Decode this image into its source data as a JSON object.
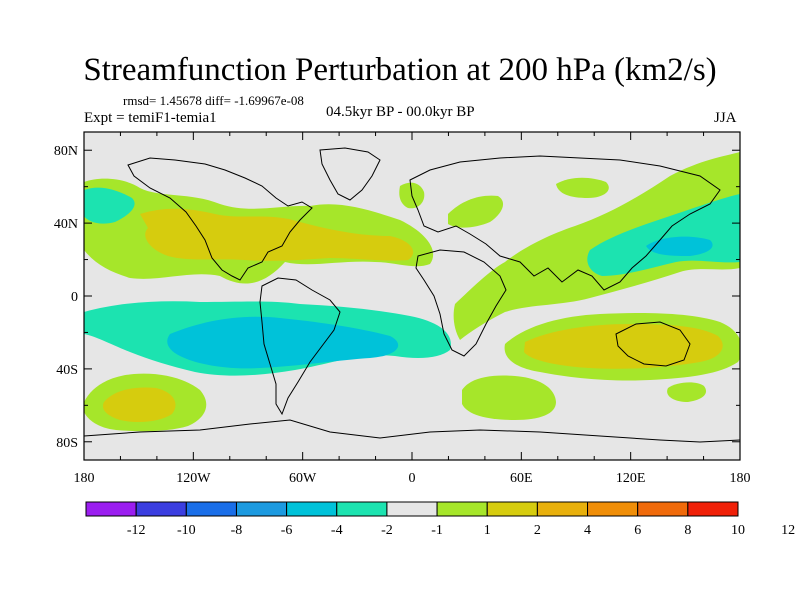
{
  "title": "Streamfunction Perturbation at 200 hPa (km2/s)",
  "stats_line": "rmsd= 1.45678 diff= -1.69967e-08",
  "experiment": "Expt = temiF1-temia1",
  "period": "04.5kyr BP - 00.0kyr BP",
  "season": "JJA",
  "map": {
    "lon_range": [
      -180,
      180
    ],
    "lat_range": [
      -90,
      90
    ],
    "lon_ticks": [
      {
        "value": -180,
        "label": "180"
      },
      {
        "value": -120,
        "label": "120W"
      },
      {
        "value": -60,
        "label": "60W"
      },
      {
        "value": 0,
        "label": "0"
      },
      {
        "value": 60,
        "label": "60E"
      },
      {
        "value": 120,
        "label": "120E"
      },
      {
        "value": 180,
        "label": "180"
      }
    ],
    "lat_ticks": [
      {
        "value": 80,
        "label": "80N"
      },
      {
        "value": 40,
        "label": "40N"
      },
      {
        "value": 0,
        "label": "0"
      },
      {
        "value": -40,
        "label": "40S"
      },
      {
        "value": -80,
        "label": "80S"
      }
    ]
  },
  "colorbar": {
    "colors": [
      "#9b1ef0",
      "#3b3ee0",
      "#1a6ee8",
      "#1c9ae0",
      "#00c2d9",
      "#1ce3b0",
      "#e6e6e6",
      "#a6e62a",
      "#d6cc0e",
      "#e8b00c",
      "#f08e08",
      "#f06a0a",
      "#f02008"
    ],
    "labels": [
      "-12",
      "-10",
      "-8",
      "-6",
      "-4",
      "-2",
      "-1",
      "1",
      "2",
      "4",
      "6",
      "8",
      "10",
      "12"
    ]
  },
  "palette": {
    "neutral": "#e6e6e6",
    "green_pos": "#a6e62a",
    "yellow_pos": "#d6cc0e",
    "orange_pos": "#e8b00c",
    "teal_neg": "#1ce3b0",
    "cyan_neg": "#00c2d9"
  }
}
